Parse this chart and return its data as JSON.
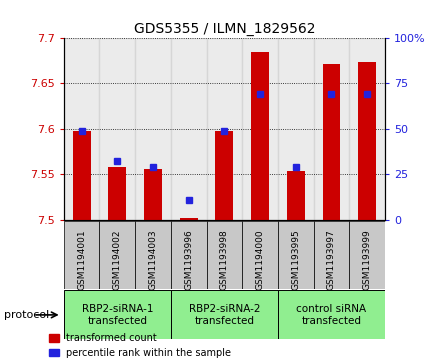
{
  "title": "GDS5355 / ILMN_1829562",
  "samples": [
    "GSM1194001",
    "GSM1194002",
    "GSM1194003",
    "GSM1193996",
    "GSM1193998",
    "GSM1194000",
    "GSM1193995",
    "GSM1193997",
    "GSM1193999"
  ],
  "red_values": [
    7.598,
    7.558,
    7.556,
    7.502,
    7.598,
    7.685,
    7.554,
    7.672,
    7.674
  ],
  "blue_values": [
    7.598,
    7.565,
    7.558,
    7.522,
    7.598,
    7.638,
    7.558,
    7.638,
    7.638
  ],
  "ymin": 7.5,
  "ymax": 7.7,
  "y_ticks": [
    7.5,
    7.55,
    7.6,
    7.65,
    7.7
  ],
  "y_tick_labels": [
    "7.5",
    "7.55",
    "7.6",
    "7.65",
    "7.7"
  ],
  "y2min": 0,
  "y2max": 100,
  "y2_ticks": [
    0,
    25,
    50,
    75,
    100
  ],
  "y2_tick_labels": [
    "0",
    "25",
    "50",
    "75",
    "100%"
  ],
  "groups": [
    {
      "label": "RBP2-siRNA-1\ntransfected",
      "start": 0,
      "end": 3,
      "color": "#90EE90"
    },
    {
      "label": "RBP2-siRNA-2\ntransfected",
      "start": 3,
      "end": 6,
      "color": "#90EE90"
    },
    {
      "label": "control siRNA\ntransfected",
      "start": 6,
      "end": 9,
      "color": "#90EE90"
    }
  ],
  "protocol_label": "protocol",
  "bar_color": "#CC0000",
  "dot_color": "#2222DD",
  "bar_width": 0.5,
  "background_color": "#ffffff",
  "plot_bg_color": "#ffffff",
  "tick_color_left": "#CC0000",
  "tick_color_right": "#2222DD",
  "grid_color": "#000000",
  "sample_bg_color": "#C8C8C8",
  "legend_red_label": "transformed count",
  "legend_blue_label": "percentile rank within the sample"
}
